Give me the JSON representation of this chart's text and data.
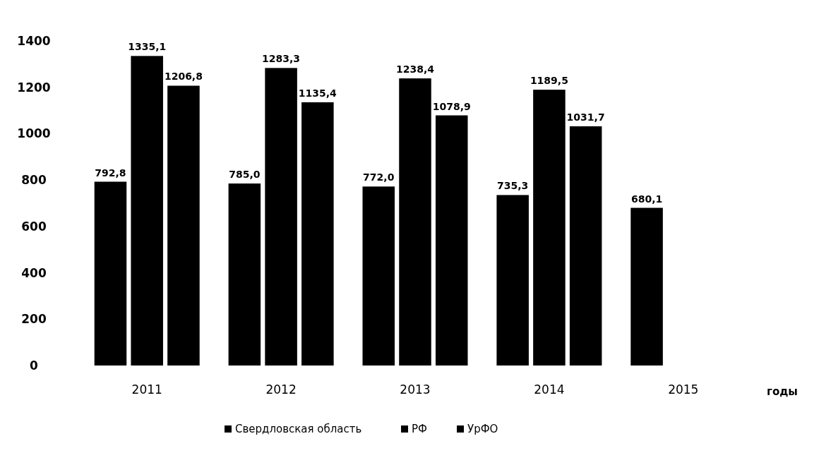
{
  "chart_data": {
    "type": "bar",
    "xlabel": "годы",
    "categories": [
      "2011",
      "2012",
      "2013",
      "2014",
      "2015"
    ],
    "series": [
      {
        "name": "Свердловская область",
        "color": "#000000",
        "values": [
          792.8,
          785.0,
          772.0,
          735.3,
          680.1
        ],
        "value_labels": [
          "792,8",
          "785,0",
          "772,0",
          "735,3",
          "680,1"
        ]
      },
      {
        "name": "РФ",
        "color": "#000000",
        "values": [
          1335.1,
          1283.3,
          1238.4,
          1189.5,
          null
        ],
        "value_labels": [
          "1335,1",
          "1283,3",
          "1238,4",
          "1189,5",
          null
        ]
      },
      {
        "name": "УрФО",
        "color": "#000000",
        "values": [
          1206.8,
          1135.4,
          1078.9,
          1031.7,
          null
        ],
        "value_labels": [
          "1206,8",
          "1135,4",
          "1078,9",
          "1031,7",
          null
        ]
      }
    ],
    "ylim": [
      0,
      1400
    ],
    "yticks": [
      0,
      200,
      400,
      600,
      800,
      1000,
      1200,
      1400
    ],
    "grid": false,
    "legend": "bottom"
  }
}
